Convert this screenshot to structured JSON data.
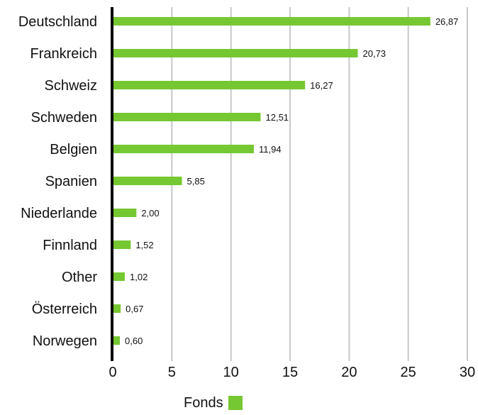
{
  "chart_data": {
    "type": "bar",
    "orientation": "horizontal",
    "categories": [
      "Deutschland",
      "Frankreich",
      "Schweiz",
      "Schweden",
      "Belgien",
      "Spanien",
      "Niederlande",
      "Finnland",
      "Other",
      "Österreich",
      "Norwegen"
    ],
    "series": [
      {
        "name": "Fonds",
        "values": [
          26.87,
          20.73,
          16.27,
          12.51,
          11.94,
          5.85,
          2.0,
          1.52,
          1.02,
          0.67,
          0.6
        ],
        "labels": [
          "26,87",
          "20,73",
          "16,27",
          "12,51",
          "11,94",
          "5,85",
          "2,00",
          "1,52",
          "1,02",
          "0,67",
          "0,60"
        ]
      }
    ],
    "xlim": [
      0,
      30
    ],
    "xticks": [
      "0",
      "5",
      "10",
      "15",
      "20",
      "25",
      "30"
    ],
    "grid": "vertical",
    "legend": "bottom",
    "colors": {
      "bar": "#76c832",
      "grid": "#c8c8c8",
      "axis": "#000000"
    }
  }
}
